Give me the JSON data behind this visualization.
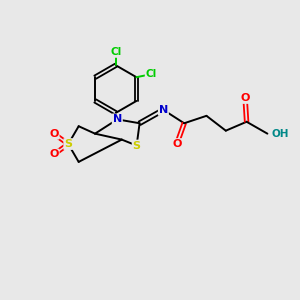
{
  "bg_color": "#e8e8e8",
  "atom_colors": {
    "C": "#000000",
    "N": "#0000cc",
    "S": "#cccc00",
    "O": "#ff0000",
    "Cl": "#00cc00",
    "H": "#008888"
  },
  "bond_color": "#000000",
  "figsize": [
    3.0,
    3.0
  ],
  "dpi": 100,
  "lw": 1.4,
  "dlw": 1.3,
  "fs": 7.5
}
